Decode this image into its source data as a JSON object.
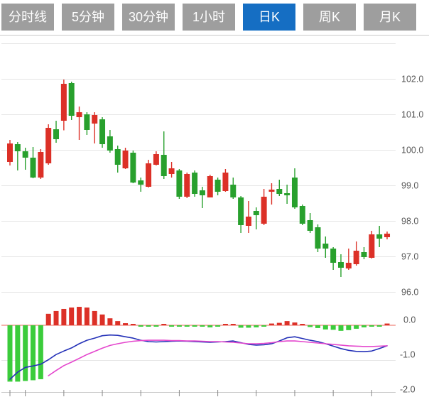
{
  "tab_bar": {
    "items": [
      {
        "label": "分时线",
        "active": false
      },
      {
        "label": "5分钟",
        "active": false
      },
      {
        "label": "30分钟",
        "active": false
      },
      {
        "label": "1小时",
        "active": false
      },
      {
        "label": "日K",
        "active": true
      },
      {
        "label": "周K",
        "active": false
      },
      {
        "label": "月K",
        "active": false
      }
    ],
    "colors": {
      "active_bg": "#156ec3",
      "inactive_bg": "#9e9e9e",
      "text": "#ffffff"
    }
  },
  "colors": {
    "background": "#ffffff",
    "grid_line": "#e5e5e5",
    "divider": "#c9c9c9",
    "axis_text": "#555555",
    "tick_mark": "#888888",
    "up_red": "#dc3027",
    "down_green": "#28a02d",
    "macd_green": "#3bcc3b",
    "dif_blue": "#2431b8",
    "dea_magenta": "#e446cd",
    "zero_line": "#f0837a"
  },
  "chart_data": [
    {
      "type": "candlestick",
      "title": "",
      "xlabel": "",
      "ylabel": "",
      "legend": "none",
      "grid": true,
      "y_axis_side": "right",
      "y_ticks": [
        "102.0",
        "101.0",
        "100.0",
        "99.0",
        "98.0",
        "97.0",
        "96.0"
      ],
      "y_tick_values": [
        102,
        101,
        100,
        99,
        98,
        97,
        96
      ],
      "ylim": [
        95.9,
        103.0
      ],
      "x_tick_indices": [
        0,
        2,
        7,
        12,
        17,
        22,
        27,
        32,
        37,
        42,
        47
      ],
      "up_color": "#dc3027",
      "down_color": "#28a02d",
      "ohlc_format": [
        "open",
        "high",
        "low",
        "close"
      ],
      "ohlc": [
        [
          99.66,
          100.28,
          99.56,
          100.18
        ],
        [
          100.16,
          100.22,
          99.42,
          99.96
        ],
        [
          99.96,
          100.06,
          99.44,
          99.78
        ],
        [
          99.78,
          100.08,
          99.2,
          99.22
        ],
        [
          99.22,
          100.02,
          99.18,
          99.94
        ],
        [
          99.62,
          100.72,
          99.58,
          100.62
        ],
        [
          100.58,
          100.82,
          100.2,
          100.3
        ],
        [
          100.82,
          101.98,
          100.55,
          101.86
        ],
        [
          101.88,
          101.92,
          100.84,
          100.96
        ],
        [
          100.92,
          101.22,
          100.28,
          101.06
        ],
        [
          101.0,
          101.06,
          100.42,
          100.56
        ],
        [
          100.74,
          101.06,
          100.18,
          100.98
        ],
        [
          100.86,
          100.92,
          100.06,
          100.16
        ],
        [
          100.38,
          100.56,
          99.92,
          99.98
        ],
        [
          100.02,
          100.12,
          99.36,
          99.58
        ],
        [
          99.48,
          100.06,
          99.46,
          99.98
        ],
        [
          99.92,
          99.98,
          99.06,
          99.08
        ],
        [
          99.14,
          99.22,
          98.82,
          99.02
        ],
        [
          98.96,
          99.72,
          98.94,
          99.62
        ],
        [
          99.58,
          99.96,
          99.56,
          99.88
        ],
        [
          99.86,
          100.52,
          99.18,
          99.26
        ],
        [
          99.32,
          99.66,
          99.22,
          99.48
        ],
        [
          99.42,
          99.46,
          98.62,
          98.68
        ],
        [
          98.68,
          99.36,
          98.64,
          99.32
        ],
        [
          99.36,
          99.42,
          98.68,
          98.76
        ],
        [
          98.86,
          98.96,
          98.36,
          98.72
        ],
        [
          98.66,
          99.3,
          98.66,
          99.26
        ],
        [
          99.16,
          99.22,
          98.72,
          98.82
        ],
        [
          98.84,
          99.46,
          98.82,
          99.36
        ],
        [
          99.02,
          99.22,
          98.62,
          98.66
        ],
        [
          98.66,
          98.7,
          97.66,
          97.88
        ],
        [
          97.86,
          98.56,
          97.66,
          98.12
        ],
        [
          98.28,
          98.38,
          97.76,
          98.16
        ],
        [
          97.92,
          98.9,
          97.88,
          98.68
        ],
        [
          98.82,
          99.06,
          98.46,
          98.88
        ],
        [
          98.9,
          99.16,
          98.7,
          98.76
        ],
        [
          98.78,
          99.02,
          98.48,
          98.72
        ],
        [
          99.22,
          99.48,
          98.34,
          98.38
        ],
        [
          98.42,
          98.46,
          97.88,
          97.92
        ],
        [
          98.02,
          98.22,
          97.66,
          97.72
        ],
        [
          97.82,
          97.9,
          97.12,
          97.22
        ],
        [
          97.36,
          97.56,
          96.96,
          97.22
        ],
        [
          97.22,
          97.26,
          96.62,
          96.82
        ],
        [
          96.84,
          97.06,
          96.42,
          96.68
        ],
        [
          96.66,
          97.22,
          96.62,
          96.82
        ],
        [
          96.78,
          97.42,
          96.74,
          97.16
        ],
        [
          97.12,
          97.26,
          96.92,
          96.98
        ],
        [
          96.96,
          97.72,
          96.94,
          97.62
        ],
        [
          97.62,
          97.86,
          97.26,
          97.5
        ],
        [
          97.54,
          97.7,
          97.48,
          97.64
        ]
      ]
    },
    {
      "type": "bar",
      "name": "MACD",
      "title": "",
      "legend": "none",
      "y_ticks": [
        "0.0",
        "-1.0",
        "-2.0"
      ],
      "y_tick_values": [
        0,
        -1,
        -2
      ],
      "ylim": [
        -2.15,
        0.6
      ],
      "positive_color": "#dc3027",
      "negative_color": "#3bcc3b",
      "histogram": [
        -1.62,
        -1.62,
        -1.6,
        -1.58,
        -1.55,
        0.33,
        0.41,
        0.47,
        0.51,
        0.53,
        0.51,
        0.41,
        0.31,
        0.2,
        0.12,
        0.06,
        0.04,
        -0.03,
        -0.03,
        -0.04,
        0.02,
        -0.01,
        -0.03,
        -0.03,
        -0.03,
        -0.02,
        -0.06,
        -0.01,
        0.01,
        0.03,
        -0.07,
        -0.07,
        -0.06,
        -0.02,
        0.05,
        0.07,
        0.12,
        0.08,
        0.03,
        -0.05,
        -0.08,
        -0.12,
        -0.13,
        -0.16,
        -0.14,
        -0.1,
        -0.06,
        -0.03,
        -0.02,
        0.05
      ],
      "dif_line": [
        -1.55,
        -1.35,
        -1.21,
        -1.17,
        -1.12,
        -0.99,
        -0.84,
        -0.74,
        -0.65,
        -0.53,
        -0.43,
        -0.37,
        -0.3,
        -0.28,
        -0.29,
        -0.33,
        -0.37,
        -0.43,
        -0.47,
        -0.48,
        -0.47,
        -0.46,
        -0.45,
        -0.46,
        -0.47,
        -0.48,
        -0.49,
        -0.48,
        -0.47,
        -0.45,
        -0.5,
        -0.55,
        -0.57,
        -0.56,
        -0.53,
        -0.45,
        -0.36,
        -0.33,
        -0.38,
        -0.43,
        -0.47,
        -0.53,
        -0.6,
        -0.67,
        -0.72,
        -0.75,
        -0.76,
        -0.74,
        -0.67,
        -0.59
      ],
      "dea_line": [
        null,
        null,
        null,
        null,
        null,
        -1.45,
        -1.3,
        -1.16,
        -1.06,
        -0.95,
        -0.84,
        -0.75,
        -0.66,
        -0.58,
        -0.53,
        -0.49,
        -0.46,
        -0.44,
        -0.43,
        -0.43,
        -0.43,
        -0.44,
        -0.44,
        -0.45,
        -0.45,
        -0.46,
        -0.47,
        -0.47,
        -0.48,
        -0.49,
        -0.51,
        -0.53,
        -0.53,
        -0.52,
        -0.5,
        -0.47,
        -0.45,
        -0.45,
        -0.47,
        -0.49,
        -0.51,
        -0.53,
        -0.55,
        -0.57,
        -0.59,
        -0.6,
        -0.61,
        -0.61,
        -0.6,
        -0.59
      ]
    }
  ]
}
